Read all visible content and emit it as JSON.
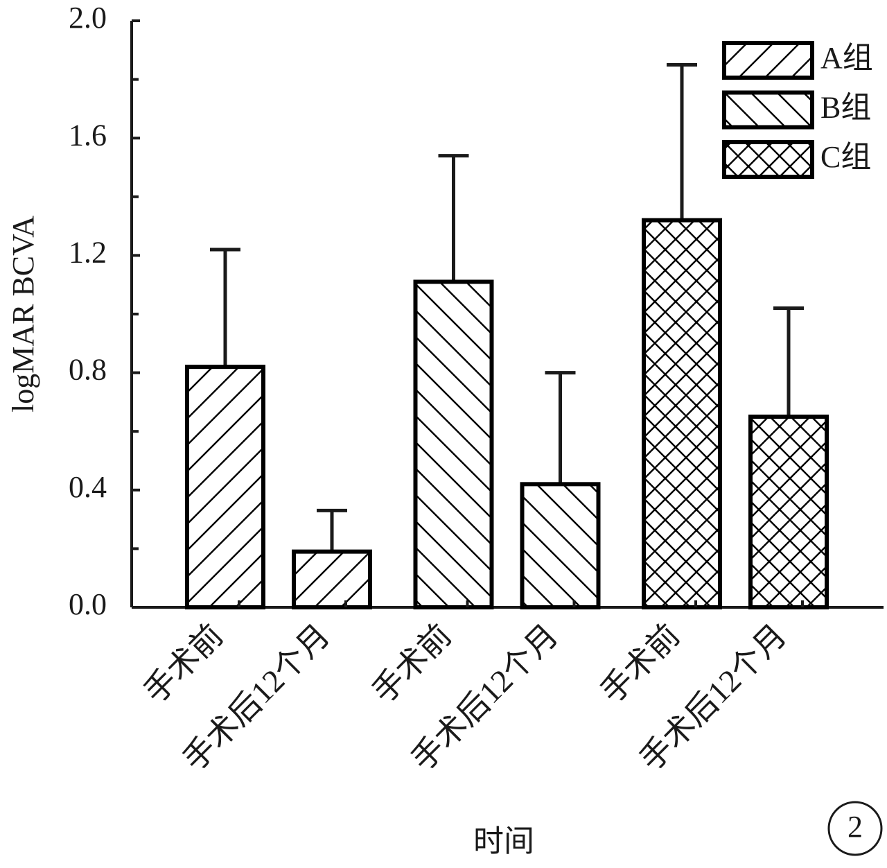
{
  "chart_data": {
    "type": "bar",
    "x_label": "时间",
    "y_label": "logMAR BCVA",
    "annotation": "2",
    "categories": [
      "手术前",
      "手术后12个月"
    ],
    "series": [
      {
        "name": "A组",
        "color": "#000000",
        "hatch": "/",
        "values": [
          0.82,
          0.19
        ],
        "errors": [
          0.4,
          0.14
        ]
      },
      {
        "name": "B组",
        "color": "#000000",
        "hatch": "\\",
        "values": [
          1.11,
          0.42
        ],
        "errors": [
          0.43,
          0.38
        ]
      },
      {
        "name": "C组",
        "color": "#000000",
        "hatch": "x",
        "values": [
          1.32,
          0.65
        ],
        "errors": [
          0.53,
          0.37
        ]
      }
    ],
    "ylim": [
      0,
      2.0
    ],
    "yticks": [
      {
        "value": 0,
        "label": "0.0"
      },
      0.4,
      0.8,
      1.2,
      1.6,
      {
        "value": 2.0,
        "label": "2.0"
      }
    ],
    "minor_yticks": [
      0.2,
      0.6,
      1.0,
      1.4,
      1.8
    ],
    "legend": "upper right"
  }
}
